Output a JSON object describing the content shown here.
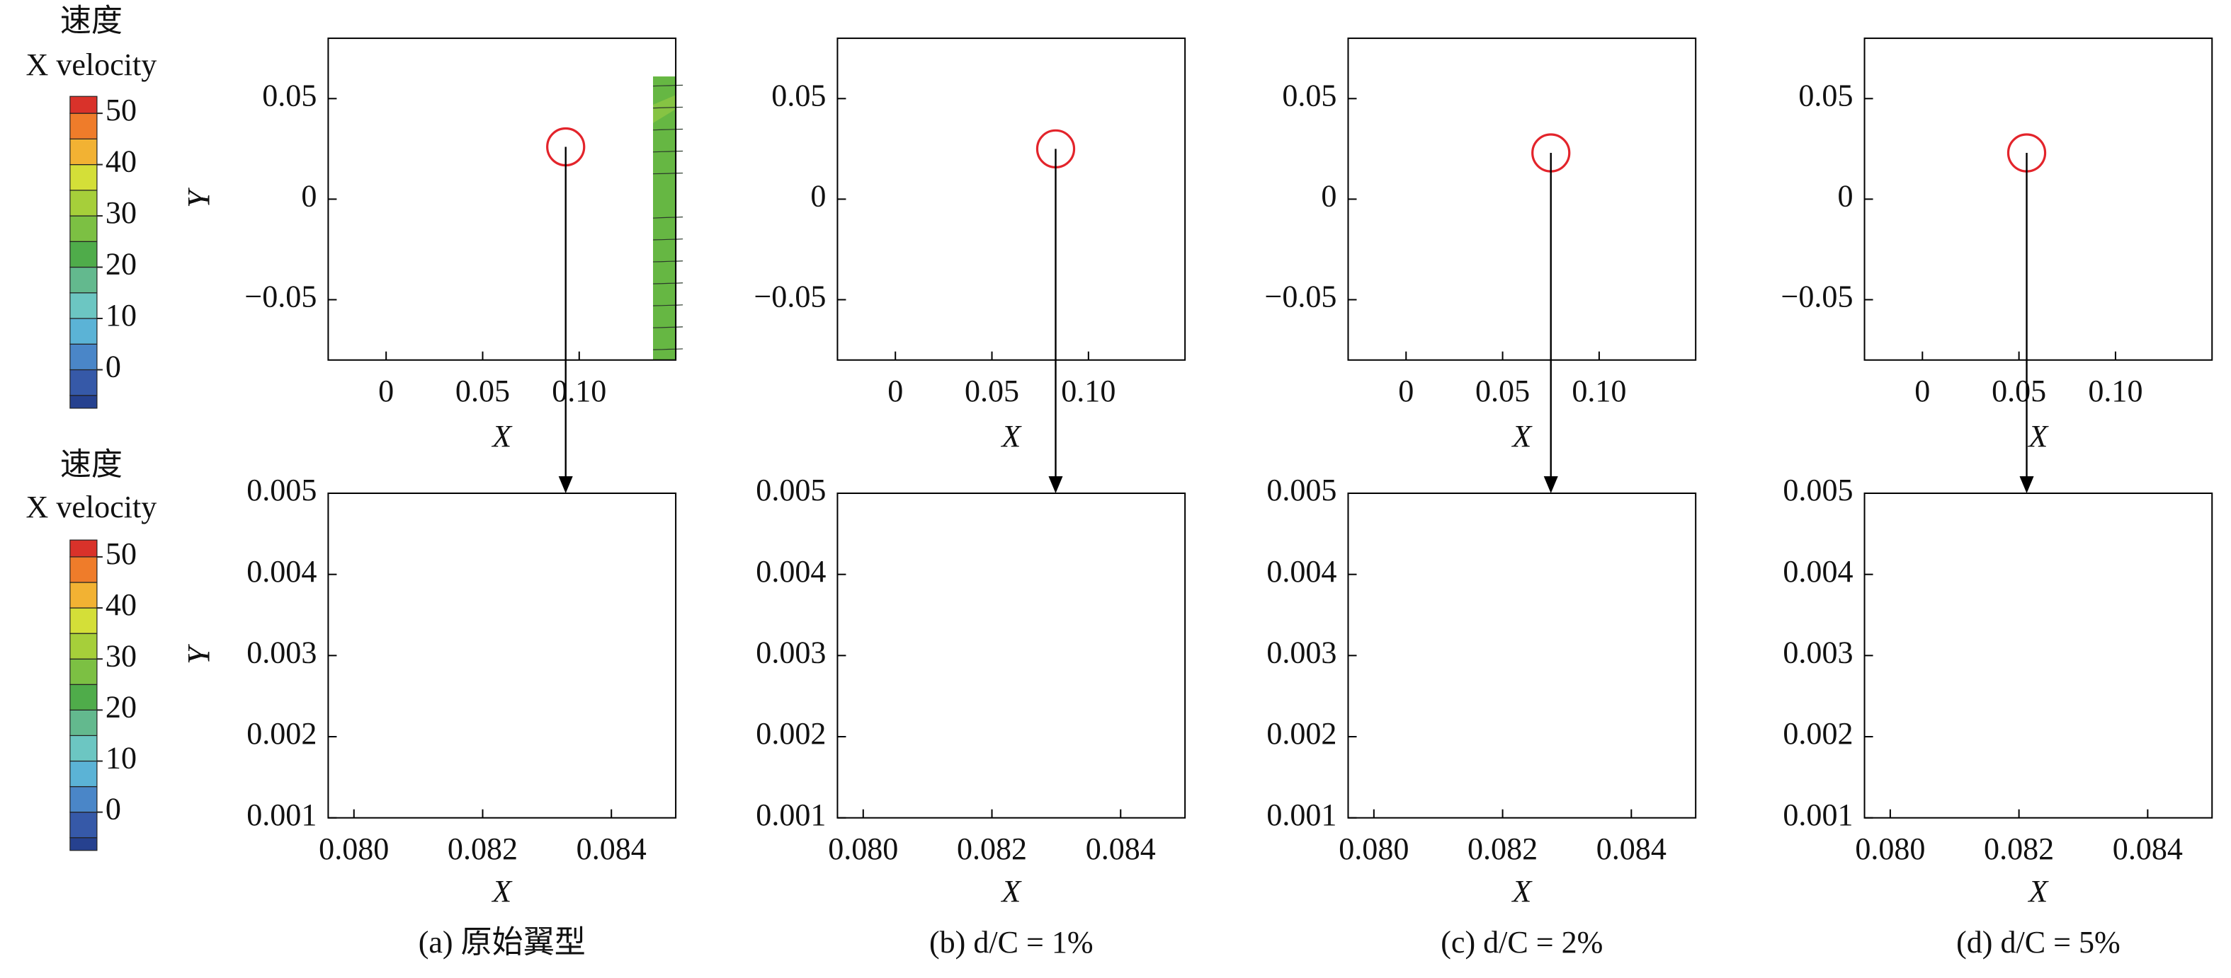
{
  "colorbars": [
    {
      "title": "速度",
      "subtitle": "X velocity",
      "ticks": [
        50,
        40,
        30,
        20,
        10,
        0
      ],
      "lim": [
        -7.5,
        53.3
      ],
      "levels": [
        -7.5,
        -5,
        0,
        5,
        10,
        15,
        20,
        25,
        30,
        35,
        40,
        45,
        50,
        53.3
      ],
      "colors": [
        "#26418f",
        "#3659a8",
        "#4a86c8",
        "#5bb3d6",
        "#6cc6c2",
        "#63b98e",
        "#4fac4a",
        "#7cc043",
        "#a6cf3a",
        "#d4df38",
        "#f2b233",
        "#ef7c2a",
        "#d9322a"
      ]
    },
    {
      "title": "速度",
      "subtitle": "X velocity",
      "ticks": [
        50,
        40,
        30,
        20,
        10,
        0
      ],
      "lim": [
        -7.5,
        53.3
      ],
      "levels": [
        -7.5,
        -5,
        0,
        5,
        10,
        15,
        20,
        25,
        30,
        35,
        40,
        45,
        50,
        53.3
      ],
      "colors": [
        "#26418f",
        "#3659a8",
        "#4a86c8",
        "#5bb3d6",
        "#6cc6c2",
        "#63b98e",
        "#4fac4a",
        "#7cc043",
        "#a6cf3a",
        "#d4df38",
        "#f2b233",
        "#ef7c2a",
        "#d9322a"
      ]
    }
  ],
  "top_axes": {
    "xlabel": "X",
    "ylabel": "Y",
    "xlim": [
      -0.03,
      0.15
    ],
    "ylim": [
      -0.08,
      0.08
    ],
    "xticks": [
      0,
      0.05,
      {
        "value": 0.1,
        "label": "0.10"
      }
    ],
    "yticks": [
      {
        "value": -0.05,
        "label": "−0.05"
      },
      0,
      0.05
    ]
  },
  "bottom_axes": {
    "xlabel": "X",
    "ylabel": "Y",
    "xlim": [
      0.0796,
      0.085
    ],
    "ylim": [
      0.001,
      0.005
    ],
    "xticks": [
      {
        "value": 0.08,
        "label": "0.080"
      },
      0.082,
      0.084
    ],
    "yticks": [
      0.001,
      0.002,
      0.003,
      0.004,
      0.005
    ]
  },
  "panels": [
    {
      "caption": "(a) 原始翼型",
      "probe": [
        0.093,
        0.026
      ],
      "vortex": false
    },
    {
      "caption": "(b) d/C = 1%",
      "probe": [
        0.083,
        0.025
      ],
      "vortex": true
    },
    {
      "caption": "(c) d/C = 2%",
      "probe": [
        0.075,
        0.023
      ],
      "vortex": true
    },
    {
      "caption": "(d) d/C = 5%",
      "probe": [
        0.054,
        0.023
      ],
      "vortex": true
    }
  ]
}
